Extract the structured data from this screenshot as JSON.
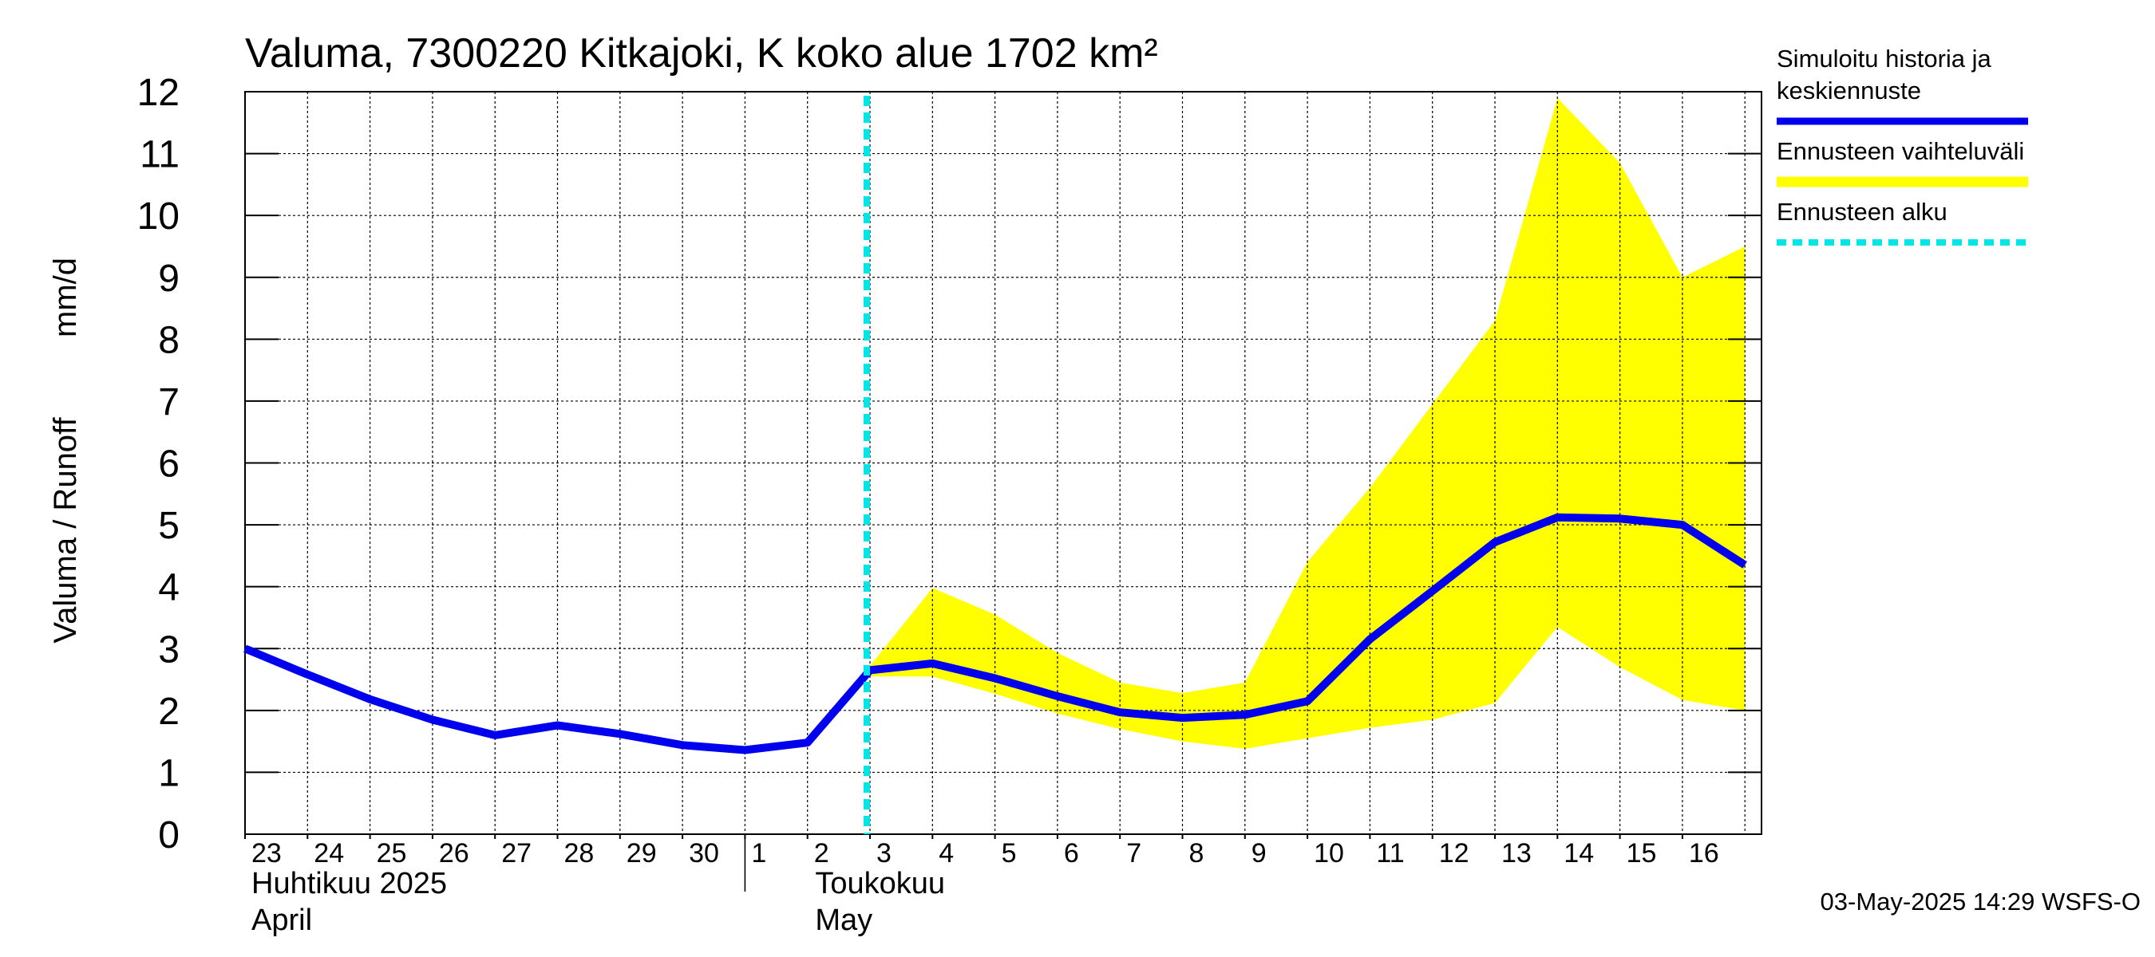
{
  "chart_data": {
    "type": "area",
    "title": "Valuma, 7300220 Kitkajoki, K koko alue 1702 km²",
    "ylabel_parts": [
      "Valuma / Runoff",
      "mm/d"
    ],
    "ylim": [
      0,
      12
    ],
    "yticks": [
      "0",
      "1",
      "2",
      "3",
      "4",
      "5",
      "6",
      "7",
      "8",
      "9",
      "10",
      "11",
      "12"
    ],
    "x_start": "2025-04-23",
    "x_end": "2025-05-16",
    "xtick_labels": [
      "23",
      "24",
      "25",
      "26",
      "27",
      "28",
      "29",
      "30",
      "1",
      "2",
      "3",
      "4",
      "5",
      "6",
      "7",
      "8",
      "9",
      "10",
      "11",
      "12",
      "13",
      "14",
      "15",
      "16"
    ],
    "month_labels": [
      {
        "line1": "Huhtikuu  2025",
        "line2": "April",
        "date": "2025-04-23"
      },
      {
        "line1": "Toukokuu",
        "line2": "May",
        "date": "2025-05-01"
      }
    ],
    "forecast_start": "2025-05-03",
    "series": [
      {
        "name": "Simuloitu historia ja keskiennuste",
        "color": "#0000ee",
        "points": [
          [
            "2025-04-23",
            3.0
          ],
          [
            "2025-04-24",
            2.58
          ],
          [
            "2025-04-25",
            2.18
          ],
          [
            "2025-04-26",
            1.85
          ],
          [
            "2025-04-27",
            1.6
          ],
          [
            "2025-04-28",
            1.76
          ],
          [
            "2025-04-29",
            1.62
          ],
          [
            "2025-04-30",
            1.44
          ],
          [
            "2025-05-01",
            1.36
          ],
          [
            "2025-05-02",
            1.48
          ],
          [
            "2025-05-03",
            2.65
          ],
          [
            "2025-05-04",
            2.76
          ],
          [
            "2025-05-05",
            2.52
          ],
          [
            "2025-05-06",
            2.23
          ],
          [
            "2025-05-07",
            1.97
          ],
          [
            "2025-05-08",
            1.88
          ],
          [
            "2025-05-09",
            1.93
          ],
          [
            "2025-05-10",
            2.15
          ],
          [
            "2025-05-11",
            3.15
          ],
          [
            "2025-05-12",
            3.93
          ],
          [
            "2025-05-13",
            4.72
          ],
          [
            "2025-05-14",
            5.12
          ],
          [
            "2025-05-15",
            5.1
          ],
          [
            "2025-05-16",
            5.0
          ],
          [
            "2025-05-17",
            4.35
          ]
        ]
      },
      {
        "name": "Ennusteen vaihteluväli",
        "color": "#ffff00",
        "upper": [
          [
            "2025-05-03",
            2.72
          ],
          [
            "2025-05-04",
            3.98
          ],
          [
            "2025-05-05",
            3.55
          ],
          [
            "2025-05-06",
            2.93
          ],
          [
            "2025-05-07",
            2.45
          ],
          [
            "2025-05-08",
            2.28
          ],
          [
            "2025-05-09",
            2.45
          ],
          [
            "2025-05-10",
            4.4
          ],
          [
            "2025-05-11",
            5.6
          ],
          [
            "2025-05-12",
            6.95
          ],
          [
            "2025-05-13",
            8.3
          ],
          [
            "2025-05-14",
            11.9
          ],
          [
            "2025-05-15",
            10.85
          ],
          [
            "2025-05-16",
            9.0
          ],
          [
            "2025-05-17",
            9.5
          ]
        ],
        "lower": [
          [
            "2025-05-03",
            2.55
          ],
          [
            "2025-05-04",
            2.55
          ],
          [
            "2025-05-05",
            2.27
          ],
          [
            "2025-05-06",
            1.95
          ],
          [
            "2025-05-07",
            1.7
          ],
          [
            "2025-05-08",
            1.5
          ],
          [
            "2025-05-09",
            1.38
          ],
          [
            "2025-05-10",
            1.55
          ],
          [
            "2025-05-11",
            1.72
          ],
          [
            "2025-05-12",
            1.85
          ],
          [
            "2025-05-13",
            2.12
          ],
          [
            "2025-05-14",
            3.35
          ],
          [
            "2025-05-15",
            2.7
          ],
          [
            "2025-05-16",
            2.17
          ],
          [
            "2025-05-17",
            2.0
          ]
        ]
      }
    ],
    "legend": [
      {
        "lines": [
          "Simuloitu historia ja",
          "keskiennuste"
        ],
        "color": "#0000ee",
        "style": "solid"
      },
      {
        "lines": [
          "Ennusteen vaihteluväli"
        ],
        "color": "#ffff00",
        "style": "solid"
      },
      {
        "lines": [
          "Ennusteen alku"
        ],
        "color": "#00e5e5",
        "style": "dashed"
      }
    ],
    "legend_position": "right",
    "grid": true,
    "footer": "03-May-2025 14:29 WSFS-O"
  }
}
